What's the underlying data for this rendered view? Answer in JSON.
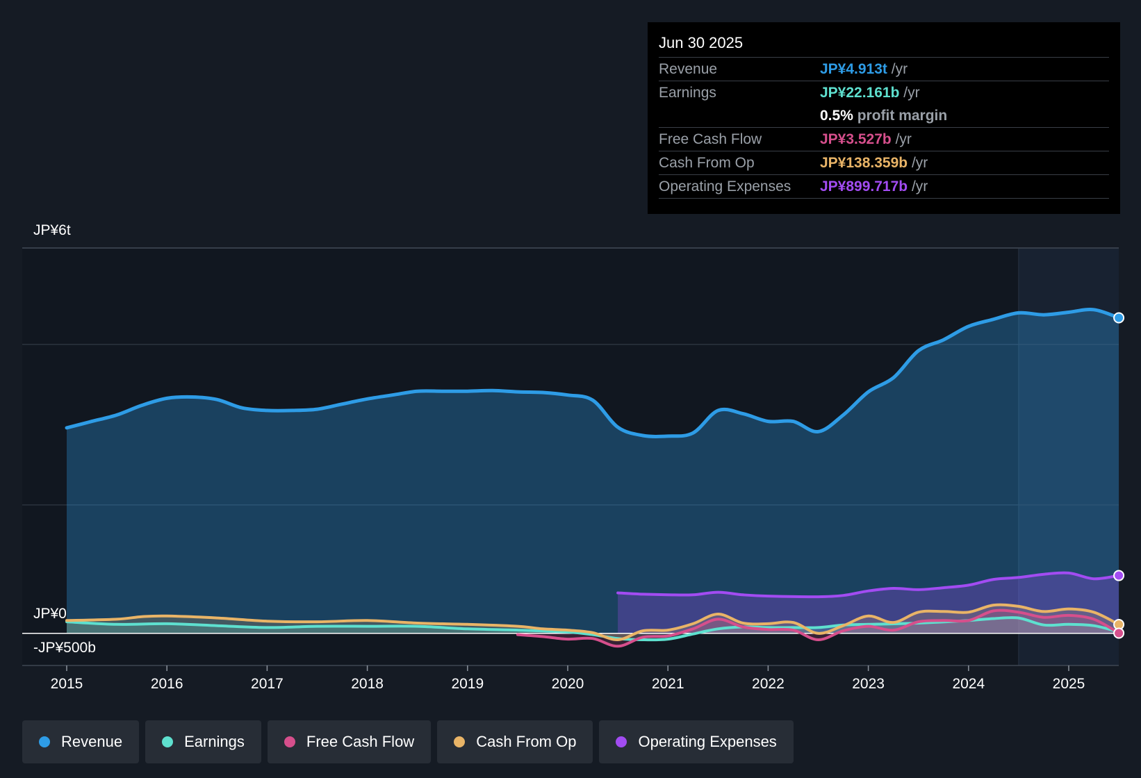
{
  "colors": {
    "revenue": "#2e9ce6",
    "earnings": "#5ee0cf",
    "fcf": "#d64f8c",
    "cfo": "#e9b467",
    "opex": "#a24cf2"
  },
  "tooltip": {
    "date": "Jun 30 2025",
    "rows": [
      {
        "label": "Revenue",
        "value": "JP¥4.913t",
        "unit": "/yr"
      },
      {
        "label": "Earnings",
        "value": "JP¥22.161b",
        "unit": "/yr"
      },
      {
        "label": "",
        "value": "0.5%",
        "unit": "profit margin"
      },
      {
        "label": "Free Cash Flow",
        "value": "JP¥3.527b",
        "unit": "/yr"
      },
      {
        "label": "Cash From Op",
        "value": "JP¥138.359b",
        "unit": "/yr"
      },
      {
        "label": "Operating Expenses",
        "value": "JP¥899.717b",
        "unit": "/yr"
      }
    ]
  },
  "legend": [
    {
      "label": "Revenue",
      "color": "#2e9ce6"
    },
    {
      "label": "Earnings",
      "color": "#5ee0cf"
    },
    {
      "label": "Free Cash Flow",
      "color": "#d64f8c"
    },
    {
      "label": "Cash From Op",
      "color": "#e9b467"
    },
    {
      "label": "Operating Expenses",
      "color": "#a24cf2"
    }
  ],
  "chart_data": {
    "type": "area",
    "title": "",
    "y_top_label": "JP¥6t",
    "y_zero_label": "JP¥0",
    "y_bottom_label": "-JP¥500b",
    "ylim": [
      -0.5,
      6
    ],
    "y_unit": "trillion JPY",
    "xlim": [
      2014.6,
      2025.5
    ],
    "x_ticks": [
      2015,
      2016,
      2017,
      2018,
      2019,
      2020,
      2021,
      2022,
      2023,
      2024,
      2025
    ],
    "x_tick_labels": [
      "2015",
      "2016",
      "2017",
      "2018",
      "2019",
      "2020",
      "2021",
      "2022",
      "2023",
      "2024",
      "2025"
    ],
    "forecast_start": 2024.5,
    "series": [
      {
        "name": "Revenue",
        "key": "revenue",
        "points": [
          [
            2015,
            3.2
          ],
          [
            2015.25,
            3.3
          ],
          [
            2015.5,
            3.4
          ],
          [
            2015.75,
            3.55
          ],
          [
            2016,
            3.66
          ],
          [
            2016.25,
            3.68
          ],
          [
            2016.5,
            3.64
          ],
          [
            2016.75,
            3.51
          ],
          [
            2017,
            3.47
          ],
          [
            2017.25,
            3.47
          ],
          [
            2017.5,
            3.49
          ],
          [
            2017.75,
            3.57
          ],
          [
            2018,
            3.65
          ],
          [
            2018.25,
            3.71
          ],
          [
            2018.5,
            3.77
          ],
          [
            2018.75,
            3.77
          ],
          [
            2019,
            3.77
          ],
          [
            2019.25,
            3.78
          ],
          [
            2019.5,
            3.76
          ],
          [
            2019.75,
            3.75
          ],
          [
            2020,
            3.71
          ],
          [
            2020.25,
            3.63
          ],
          [
            2020.5,
            3.21
          ],
          [
            2020.75,
            3.08
          ],
          [
            2021,
            3.07
          ],
          [
            2021.25,
            3.12
          ],
          [
            2021.5,
            3.47
          ],
          [
            2021.75,
            3.42
          ],
          [
            2022,
            3.3
          ],
          [
            2022.25,
            3.3
          ],
          [
            2022.5,
            3.14
          ],
          [
            2022.75,
            3.4
          ],
          [
            2023,
            3.76
          ],
          [
            2023.25,
            3.98
          ],
          [
            2023.5,
            4.4
          ],
          [
            2023.75,
            4.57
          ],
          [
            2024,
            4.78
          ],
          [
            2024.25,
            4.89
          ],
          [
            2024.5,
            4.99
          ],
          [
            2024.75,
            4.96
          ],
          [
            2025,
            5.0
          ],
          [
            2025.25,
            5.04
          ],
          [
            2025.5,
            4.913
          ]
        ]
      },
      {
        "name": "Earnings",
        "key": "earnings",
        "points": [
          [
            2015,
            0.18
          ],
          [
            2015.5,
            0.14
          ],
          [
            2016,
            0.15
          ],
          [
            2016.5,
            0.12
          ],
          [
            2017,
            0.09
          ],
          [
            2017.5,
            0.11
          ],
          [
            2018,
            0.11
          ],
          [
            2018.5,
            0.11
          ],
          [
            2019,
            0.07
          ],
          [
            2019.5,
            0.05
          ],
          [
            2020,
            0.02
          ],
          [
            2020.25,
            -0.02
          ],
          [
            2020.5,
            -0.08
          ],
          [
            2020.75,
            -0.1
          ],
          [
            2021,
            -0.09
          ],
          [
            2021.25,
            -0.01
          ],
          [
            2021.5,
            0.07
          ],
          [
            2021.75,
            0.1
          ],
          [
            2022,
            0.09
          ],
          [
            2022.25,
            0.09
          ],
          [
            2022.5,
            0.09
          ],
          [
            2022.75,
            0.13
          ],
          [
            2023,
            0.14
          ],
          [
            2023.5,
            0.16
          ],
          [
            2024,
            0.2
          ],
          [
            2024.25,
            0.23
          ],
          [
            2024.5,
            0.24
          ],
          [
            2024.75,
            0.13
          ],
          [
            2025,
            0.14
          ],
          [
            2025.25,
            0.12
          ],
          [
            2025.5,
            0.022
          ]
        ]
      },
      {
        "name": "Free Cash Flow",
        "key": "fcf",
        "points": [
          [
            2019.5,
            -0.02
          ],
          [
            2019.75,
            -0.05
          ],
          [
            2020,
            -0.09
          ],
          [
            2020.25,
            -0.08
          ],
          [
            2020.5,
            -0.2
          ],
          [
            2020.75,
            -0.06
          ],
          [
            2021,
            -0.04
          ],
          [
            2021.25,
            0.07
          ],
          [
            2021.5,
            0.22
          ],
          [
            2021.75,
            0.1
          ],
          [
            2022,
            0.06
          ],
          [
            2022.25,
            0.05
          ],
          [
            2022.5,
            -0.1
          ],
          [
            2022.75,
            0.04
          ],
          [
            2023,
            0.11
          ],
          [
            2023.25,
            0.05
          ],
          [
            2023.5,
            0.18
          ],
          [
            2023.75,
            0.2
          ],
          [
            2024,
            0.2
          ],
          [
            2024.25,
            0.35
          ],
          [
            2024.5,
            0.33
          ],
          [
            2024.75,
            0.25
          ],
          [
            2025,
            0.28
          ],
          [
            2025.25,
            0.22
          ],
          [
            2025.5,
            0.0035
          ]
        ]
      },
      {
        "name": "Cash From Op",
        "key": "cfo",
        "points": [
          [
            2015,
            0.2
          ],
          [
            2015.5,
            0.22
          ],
          [
            2015.75,
            0.26
          ],
          [
            2016,
            0.27
          ],
          [
            2016.5,
            0.24
          ],
          [
            2017,
            0.19
          ],
          [
            2017.5,
            0.18
          ],
          [
            2018,
            0.2
          ],
          [
            2018.5,
            0.16
          ],
          [
            2019,
            0.14
          ],
          [
            2019.5,
            0.11
          ],
          [
            2019.75,
            0.07
          ],
          [
            2020,
            0.05
          ],
          [
            2020.25,
            0.01
          ],
          [
            2020.5,
            -0.1
          ],
          [
            2020.75,
            0.04
          ],
          [
            2021,
            0.05
          ],
          [
            2021.25,
            0.15
          ],
          [
            2021.5,
            0.3
          ],
          [
            2021.75,
            0.16
          ],
          [
            2022,
            0.15
          ],
          [
            2022.25,
            0.17
          ],
          [
            2022.5,
            0.0
          ],
          [
            2022.75,
            0.12
          ],
          [
            2023,
            0.27
          ],
          [
            2023.25,
            0.17
          ],
          [
            2023.5,
            0.33
          ],
          [
            2023.75,
            0.34
          ],
          [
            2024,
            0.33
          ],
          [
            2024.25,
            0.44
          ],
          [
            2024.5,
            0.42
          ],
          [
            2024.75,
            0.34
          ],
          [
            2025,
            0.38
          ],
          [
            2025.25,
            0.33
          ],
          [
            2025.5,
            0.138
          ]
        ]
      },
      {
        "name": "Operating Expenses",
        "key": "opex",
        "points": [
          [
            2020.5,
            0.63
          ],
          [
            2020.75,
            0.61
          ],
          [
            2021,
            0.6
          ],
          [
            2021.25,
            0.6
          ],
          [
            2021.5,
            0.64
          ],
          [
            2021.75,
            0.6
          ],
          [
            2022,
            0.58
          ],
          [
            2022.5,
            0.57
          ],
          [
            2022.75,
            0.59
          ],
          [
            2023,
            0.66
          ],
          [
            2023.25,
            0.7
          ],
          [
            2023.5,
            0.68
          ],
          [
            2023.75,
            0.71
          ],
          [
            2024,
            0.75
          ],
          [
            2024.25,
            0.84
          ],
          [
            2024.5,
            0.87
          ],
          [
            2024.75,
            0.92
          ],
          [
            2025,
            0.94
          ],
          [
            2025.25,
            0.85
          ],
          [
            2025.5,
            0.9
          ]
        ]
      }
    ]
  }
}
